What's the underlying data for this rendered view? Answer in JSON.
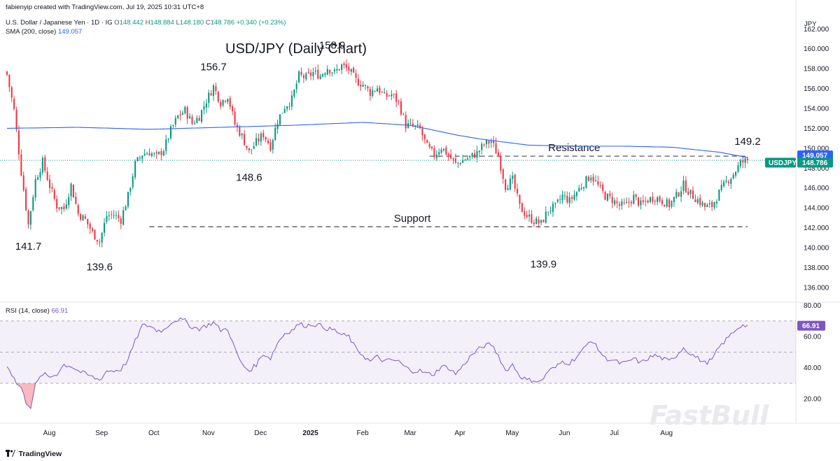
{
  "header": {
    "created_line": "fabienyip created with TradingView.com, Jul 19, 2025 10:31 UTC+8",
    "symbol_desc": "U.S. Dollar / Japanese Yen · 1D · IG",
    "ohlc": {
      "o_label": "O",
      "o": "148.442",
      "h_label": "H",
      "h": "148.884",
      "l_label": "L",
      "l": "148.180",
      "c_label": "C",
      "c": "148.786",
      "change": "+0.340 (+0.23%)"
    },
    "sma_label": "SMA (200, close)",
    "sma_value": "149.057",
    "currency": "JPY"
  },
  "price_tags": {
    "sma_tag": "149.057",
    "symbol_tag": "USDJPY",
    "price_tag": "148.786"
  },
  "rsi": {
    "label": "RSI (14, close)",
    "value": "66.91",
    "tag": "66.91"
  },
  "footer": {
    "brand": "TradingView"
  },
  "watermark": "FastBull",
  "colors": {
    "up": "#089981",
    "down": "#f23645",
    "sma": "#2962ff",
    "rsi": "#7e57c2"
  },
  "chart_data": [
    {
      "type": "candlestick",
      "title": "USD/JPY (Daily Chart)",
      "ylim": [
        135,
        163.5
      ],
      "y_ticks": [
        "162.000",
        "160.000",
        "158.000",
        "156.000",
        "154.000",
        "152.000",
        "150.000",
        "148.000",
        "146.000",
        "144.000",
        "142.000",
        "140.000",
        "138.000",
        "136.000"
      ],
      "x_ticks": [
        "Aug",
        "Sep",
        "Oct",
        "Nov",
        "Dec",
        "2025",
        "Feb",
        "Mar",
        "Apr",
        "May",
        "Jun",
        "Jul",
        "Aug"
      ],
      "annotations": [
        {
          "label": "141.7",
          "value": 141.7
        },
        {
          "label": "139.6",
          "value": 139.6
        },
        {
          "label": "156.7",
          "value": 156.7
        },
        {
          "label": "148.6",
          "value": 148.6
        },
        {
          "label": "158.9",
          "value": 158.9
        },
        {
          "label": "139.9",
          "value": 139.9
        },
        {
          "label": "149.2",
          "value": 149.2
        }
      ],
      "levels": [
        {
          "label": "Resistance",
          "value": 149.2
        },
        {
          "label": "Support",
          "value": 142.1
        }
      ],
      "last_close": 148.786,
      "anchors": [
        [
          0,
          157.4
        ],
        [
          3,
          153.8
        ],
        [
          6,
          147.6
        ],
        [
          9,
          142.3
        ],
        [
          12,
          146.8
        ],
        [
          15,
          148.6
        ],
        [
          18,
          146.2
        ],
        [
          21,
          144.2
        ],
        [
          24,
          143.9
        ],
        [
          27,
          146.3
        ],
        [
          30,
          143.4
        ],
        [
          33,
          142.8
        ],
        [
          36,
          141.5
        ],
        [
          39,
          140.6
        ],
        [
          42,
          143.2
        ],
        [
          45,
          143.3
        ],
        [
          48,
          142.8
        ],
        [
          51,
          145.2
        ],
        [
          54,
          148.4
        ],
        [
          57,
          149.4
        ],
        [
          60,
          149.6
        ],
        [
          63,
          149.1
        ],
        [
          66,
          149.9
        ],
        [
          69,
          151.8
        ],
        [
          72,
          153.2
        ],
        [
          75,
          153.8
        ],
        [
          78,
          152.5
        ],
        [
          81,
          153.2
        ],
        [
          84,
          154.8
        ],
        [
          87,
          156.2
        ],
        [
          90,
          154.6
        ],
        [
          93,
          155.3
        ],
        [
          96,
          152.4
        ],
        [
          99,
          151.2
        ],
        [
          102,
          149.6
        ],
        [
          105,
          150.6
        ],
        [
          108,
          151.4
        ],
        [
          111,
          150.2
        ],
        [
          114,
          152.8
        ],
        [
          117,
          154.2
        ],
        [
          120,
          154.9
        ],
        [
          123,
          157.3
        ],
        [
          126,
          157.1
        ],
        [
          129,
          157.6
        ],
        [
          132,
          157.3
        ],
        [
          135,
          158.1
        ],
        [
          138,
          157.6
        ],
        [
          141,
          158.3
        ],
        [
          144,
          157.9
        ],
        [
          147,
          156.8
        ],
        [
          150,
          156.4
        ],
        [
          153,
          155.6
        ],
        [
          156,
          156.1
        ],
        [
          159,
          155.2
        ],
        [
          162,
          155.4
        ],
        [
          165,
          154.6
        ],
        [
          168,
          152.3
        ],
        [
          171,
          152.2
        ],
        [
          174,
          151.9
        ],
        [
          177,
          150.1
        ],
        [
          180,
          149.3
        ],
        [
          183,
          150.1
        ],
        [
          186,
          149.3
        ],
        [
          189,
          148.4
        ],
        [
          192,
          148.8
        ],
        [
          195,
          149.1
        ],
        [
          198,
          149.5
        ],
        [
          201,
          150.4
        ],
        [
          204,
          150.7
        ],
        [
          207,
          149.2
        ],
        [
          210,
          146.2
        ],
        [
          213,
          146.8
        ],
        [
          216,
          144.1
        ],
        [
          219,
          143.2
        ],
        [
          222,
          142.7
        ],
        [
          225,
          142.4
        ],
        [
          228,
          143.8
        ],
        [
          231,
          144.1
        ],
        [
          234,
          145.2
        ],
        [
          237,
          144.7
        ],
        [
          240,
          145.6
        ],
        [
          243,
          146.5
        ],
        [
          246,
          147.3
        ],
        [
          249,
          146.2
        ],
        [
          252,
          145.2
        ],
        [
          255,
          144.8
        ],
        [
          258,
          144.2
        ],
        [
          261,
          144.3
        ],
        [
          264,
          145.1
        ],
        [
          267,
          144.3
        ],
        [
          270,
          144.8
        ],
        [
          273,
          145.1
        ],
        [
          276,
          144.7
        ],
        [
          279,
          144.3
        ],
        [
          282,
          145.2
        ],
        [
          285,
          146.3
        ],
        [
          288,
          145.4
        ],
        [
          291,
          144.8
        ],
        [
          294,
          144.1
        ],
        [
          297,
          144.2
        ],
        [
          300,
          145.5
        ],
        [
          303,
          146.6
        ],
        [
          306,
          147.4
        ],
        [
          309,
          148.5
        ],
        [
          312,
          148.8
        ]
      ]
    },
    {
      "type": "line",
      "series_name": "SMA (200, close)",
      "anchors": [
        [
          0,
          152.0
        ],
        [
          30,
          152.1
        ],
        [
          60,
          151.9
        ],
        [
          90,
          152.1
        ],
        [
          120,
          152.3
        ],
        [
          150,
          152.6
        ],
        [
          170,
          152.3
        ],
        [
          190,
          151.3
        ],
        [
          200,
          150.9
        ],
        [
          220,
          150.3
        ],
        [
          240,
          150.2
        ],
        [
          260,
          150.2
        ],
        [
          280,
          150.1
        ],
        [
          300,
          149.6
        ],
        [
          312,
          149.06
        ]
      ]
    },
    {
      "type": "line",
      "series_name": "RSI (14, close)",
      "ylim": [
        8,
        82
      ],
      "y_ticks": [
        "80.00",
        "60.00",
        "40.00",
        "20.00"
      ],
      "bands": {
        "upper": 70,
        "middle": 50,
        "lower": 30
      },
      "anchors": [
        [
          0,
          42
        ],
        [
          2,
          36
        ],
        [
          4,
          30
        ],
        [
          6,
          27
        ],
        [
          8,
          18
        ],
        [
          10,
          15
        ],
        [
          12,
          29
        ],
        [
          15,
          36
        ],
        [
          18,
          34
        ],
        [
          21,
          36
        ],
        [
          24,
          42
        ],
        [
          27,
          41
        ],
        [
          30,
          38
        ],
        [
          33,
          36
        ],
        [
          36,
          34
        ],
        [
          39,
          32
        ],
        [
          42,
          38
        ],
        [
          45,
          38
        ],
        [
          48,
          39
        ],
        [
          51,
          45
        ],
        [
          54,
          57
        ],
        [
          57,
          67
        ],
        [
          60,
          67
        ],
        [
          63,
          64
        ],
        [
          66,
          64
        ],
        [
          69,
          69
        ],
        [
          72,
          71
        ],
        [
          75,
          70
        ],
        [
          78,
          66
        ],
        [
          81,
          65
        ],
        [
          84,
          67
        ],
        [
          87,
          69
        ],
        [
          90,
          64
        ],
        [
          93,
          65
        ],
        [
          96,
          52
        ],
        [
          99,
          42
        ],
        [
          102,
          38
        ],
        [
          105,
          42
        ],
        [
          108,
          49
        ],
        [
          111,
          46
        ],
        [
          114,
          56
        ],
        [
          117,
          62
        ],
        [
          120,
          64
        ],
        [
          123,
          68
        ],
        [
          126,
          67
        ],
        [
          129,
          68
        ],
        [
          132,
          67
        ],
        [
          135,
          65
        ],
        [
          138,
          64
        ],
        [
          141,
          61
        ],
        [
          144,
          60
        ],
        [
          147,
          52
        ],
        [
          150,
          48
        ],
        [
          153,
          44
        ],
        [
          156,
          47
        ],
        [
          159,
          44
        ],
        [
          162,
          45
        ],
        [
          165,
          44
        ],
        [
          168,
          40
        ],
        [
          171,
          38
        ],
        [
          174,
          38
        ],
        [
          177,
          36
        ],
        [
          180,
          36
        ],
        [
          183,
          41
        ],
        [
          186,
          40
        ],
        [
          189,
          36
        ],
        [
          192,
          41
        ],
        [
          195,
          47
        ],
        [
          198,
          51
        ],
        [
          201,
          54
        ],
        [
          204,
          55
        ],
        [
          207,
          48
        ],
        [
          210,
          38
        ],
        [
          213,
          42
        ],
        [
          216,
          35
        ],
        [
          219,
          32
        ],
        [
          222,
          32
        ],
        [
          225,
          31
        ],
        [
          228,
          38
        ],
        [
          231,
          40
        ],
        [
          234,
          44
        ],
        [
          237,
          43
        ],
        [
          240,
          47
        ],
        [
          243,
          52
        ],
        [
          246,
          58
        ],
        [
          249,
          52
        ],
        [
          252,
          46
        ],
        [
          255,
          45
        ],
        [
          258,
          43
        ],
        [
          261,
          43
        ],
        [
          264,
          46
        ],
        [
          267,
          43
        ],
        [
          270,
          46
        ],
        [
          273,
          48
        ],
        [
          276,
          46
        ],
        [
          279,
          44
        ],
        [
          282,
          48
        ],
        [
          285,
          53
        ],
        [
          288,
          49
        ],
        [
          291,
          46
        ],
        [
          294,
          43
        ],
        [
          297,
          45
        ],
        [
          300,
          53
        ],
        [
          303,
          58
        ],
        [
          306,
          63
        ],
        [
          309,
          67
        ],
        [
          312,
          67
        ]
      ]
    }
  ]
}
